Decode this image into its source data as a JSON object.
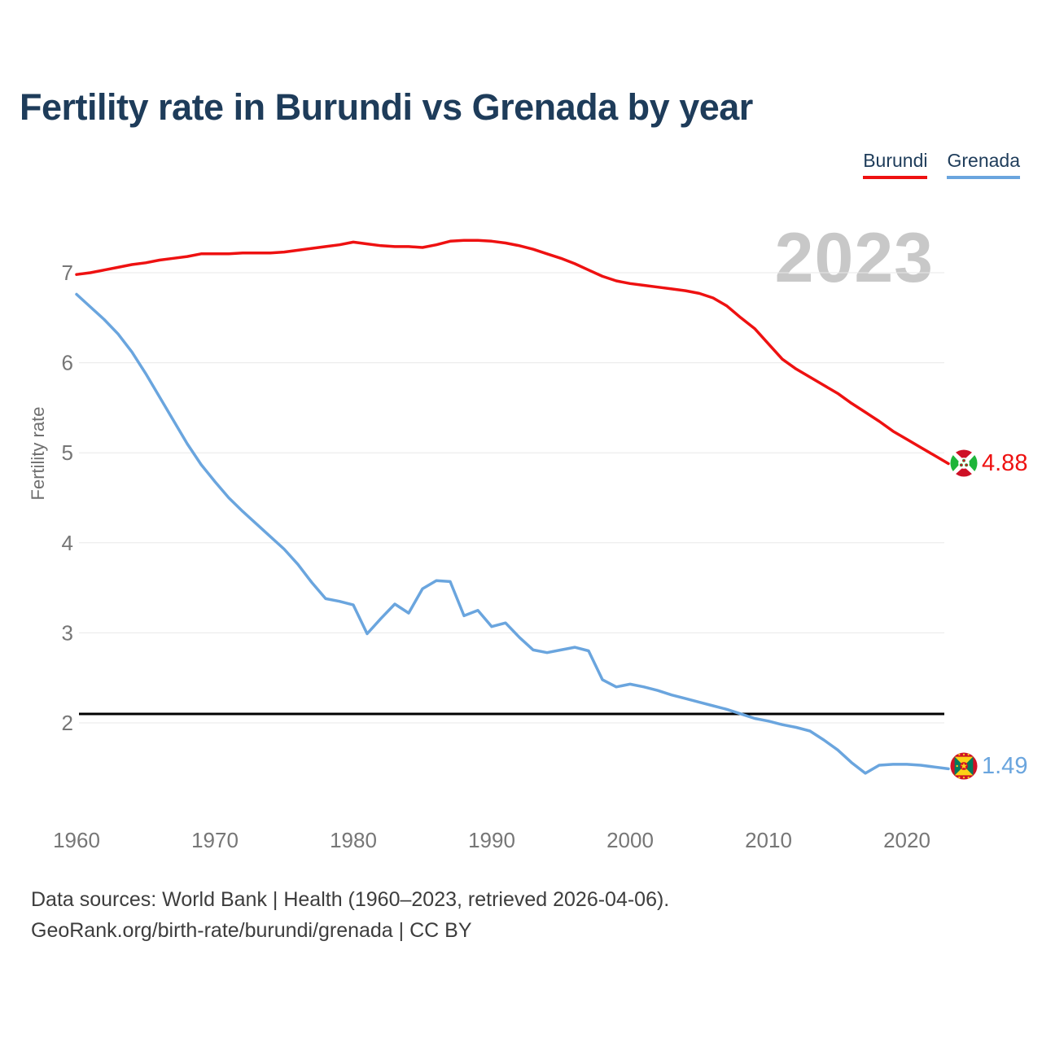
{
  "title": "Fertility rate in Burundi vs Grenada by year",
  "watermark": "2023",
  "legend": [
    {
      "label": "Burundi",
      "color": "#ee1111"
    },
    {
      "label": "Grenada",
      "color": "#6aa5de"
    }
  ],
  "y_axis": {
    "label": "Fertility rate",
    "ticks": [
      2,
      3,
      4,
      5,
      6,
      7
    ]
  },
  "x_axis": {
    "ticks": [
      1960,
      1970,
      1980,
      1990,
      2000,
      2010,
      2020
    ]
  },
  "reference_line": {
    "value": 2.1,
    "color": "#000000"
  },
  "end_labels": [
    {
      "series": "Burundi",
      "value": "4.88",
      "color": "#ee1111"
    },
    {
      "series": "Grenada",
      "value": "1.49",
      "color": "#6aa5de"
    }
  ],
  "footer": {
    "line1": "Data sources: World Bank | Health (1960–2023, retrieved 2026-04-06).",
    "line2": "GeoRank.org/birth-rate/burundi/grenada | CC BY"
  },
  "chart_data": {
    "type": "line",
    "title": "Fertility rate in Burundi vs Grenada by year",
    "xlabel": "",
    "ylabel": "Fertility rate",
    "xlim": [
      1960,
      2023
    ],
    "ylim": [
      1.2,
      7.6
    ],
    "grid": "horizontal",
    "legend_position": "top-right",
    "annotations": {
      "replacement_level_line": 2.1,
      "watermark": "2023"
    },
    "x": [
      1960,
      1961,
      1962,
      1963,
      1964,
      1965,
      1966,
      1967,
      1968,
      1969,
      1970,
      1971,
      1972,
      1973,
      1974,
      1975,
      1976,
      1977,
      1978,
      1979,
      1980,
      1981,
      1982,
      1983,
      1984,
      1985,
      1986,
      1987,
      1988,
      1989,
      1990,
      1991,
      1992,
      1993,
      1994,
      1995,
      1996,
      1997,
      1998,
      1999,
      2000,
      2001,
      2002,
      2003,
      2004,
      2005,
      2006,
      2007,
      2008,
      2009,
      2010,
      2011,
      2012,
      2013,
      2014,
      2015,
      2016,
      2017,
      2018,
      2019,
      2020,
      2021,
      2022,
      2023
    ],
    "series": [
      {
        "name": "Burundi",
        "color": "#ee1111",
        "values": [
          6.98,
          7.0,
          7.03,
          7.06,
          7.09,
          7.11,
          7.14,
          7.16,
          7.18,
          7.21,
          7.21,
          7.21,
          7.22,
          7.22,
          7.22,
          7.23,
          7.25,
          7.27,
          7.29,
          7.31,
          7.34,
          7.32,
          7.3,
          7.29,
          7.29,
          7.28,
          7.31,
          7.35,
          7.36,
          7.36,
          7.35,
          7.33,
          7.3,
          7.26,
          7.21,
          7.16,
          7.1,
          7.03,
          6.96,
          6.91,
          6.88,
          6.86,
          6.84,
          6.82,
          6.8,
          6.77,
          6.72,
          6.63,
          6.5,
          6.38,
          6.21,
          6.04,
          5.93,
          5.84,
          5.75,
          5.66,
          5.55,
          5.45,
          5.35,
          5.24,
          5.15,
          5.06,
          4.97,
          4.88
        ]
      },
      {
        "name": "Grenada",
        "color": "#6aa5de",
        "values": [
          6.76,
          6.62,
          6.48,
          6.32,
          6.12,
          5.88,
          5.62,
          5.36,
          5.1,
          4.87,
          4.68,
          4.5,
          4.35,
          4.21,
          4.07,
          3.93,
          3.76,
          3.56,
          3.38,
          3.35,
          3.31,
          2.99,
          3.16,
          3.32,
          3.22,
          3.49,
          3.58,
          3.57,
          3.19,
          3.25,
          3.07,
          3.11,
          2.95,
          2.81,
          2.78,
          2.81,
          2.84,
          2.8,
          2.48,
          2.4,
          2.43,
          2.4,
          2.36,
          2.31,
          2.27,
          2.23,
          2.19,
          2.15,
          2.1,
          2.05,
          2.02,
          1.98,
          1.95,
          1.91,
          1.81,
          1.7,
          1.56,
          1.44,
          1.53,
          1.54,
          1.54,
          1.53,
          1.51,
          1.49
        ]
      }
    ]
  }
}
